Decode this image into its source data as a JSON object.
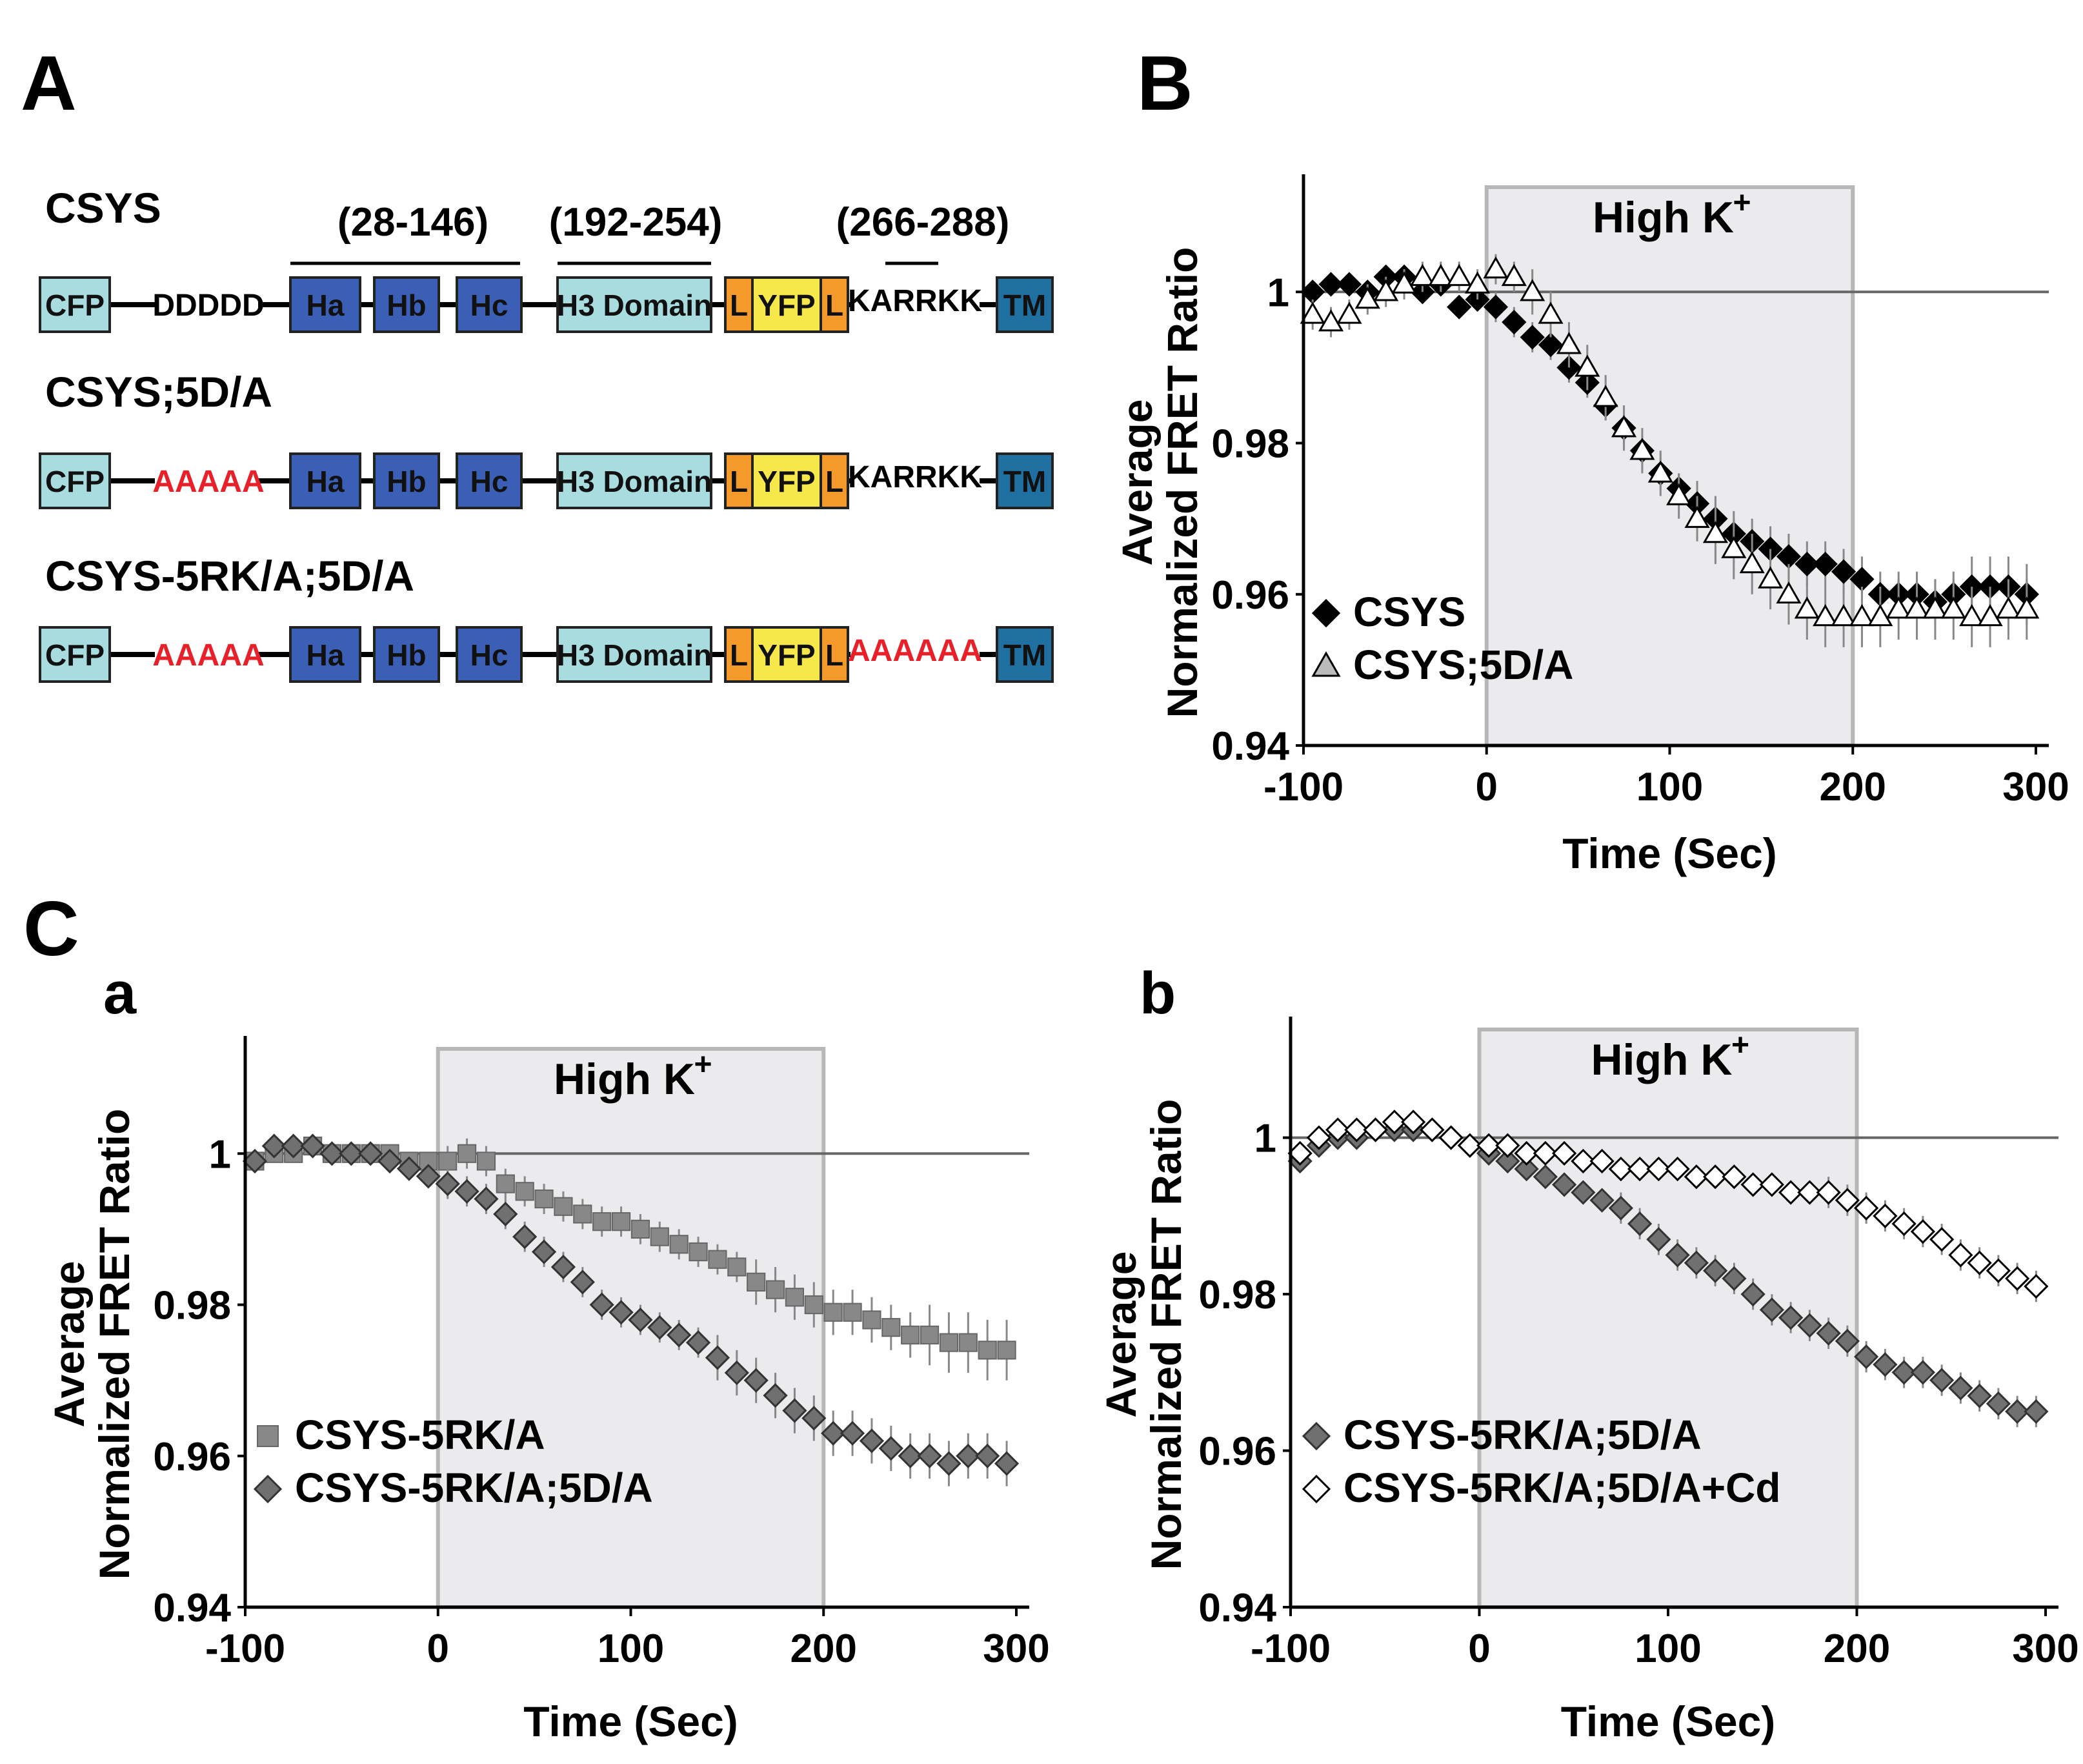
{
  "panels": {
    "A": "A",
    "B": "B",
    "C": "C",
    "Ca": "a",
    "Cb": "b"
  },
  "constructs": [
    {
      "name": "CSYS",
      "cfp": "CFP",
      "linker": "DDDDD",
      "ha": "Ha",
      "hb": "Hb",
      "hc": "Hc",
      "h3": "H3 Domain",
      "l1": "L",
      "yfp": "YFP",
      "l2": "L",
      "tail": "KARRKK",
      "tm": "TM"
    },
    {
      "name": "CSYS;5D/A",
      "cfp": "CFP",
      "linker": "AAAAA",
      "ha": "Ha",
      "hb": "Hb",
      "hc": "Hc",
      "h3": "H3 Domain",
      "l1": "L",
      "yfp": "YFP",
      "l2": "L",
      "tail": "KARRKK",
      "tm": "TM"
    },
    {
      "name": "CSYS-5RK/A;5D/A",
      "cfp": "CFP",
      "linker": "AAAAA",
      "ha": "Ha",
      "hb": "Hb",
      "hc": "Hc",
      "h3": "H3 Domain",
      "l1": "L",
      "yfp": "YFP",
      "l2": "L",
      "tail": "AAAAAA",
      "tm": "TM"
    }
  ],
  "ranges": {
    "habc": "(28-146)",
    "h3": "(192-254)",
    "tail": "(266-288)"
  },
  "colors": {
    "cfp": "#a8dcdf",
    "h": "#3a5fb5",
    "h3": "#a8dcdf",
    "l": "#f39a2b",
    "yfp": "#f6e84a",
    "tm": "#1f6fa0",
    "mutation": "#e8202a",
    "shade": "#ebebee",
    "shade_border": "#b7b7b7",
    "dark_marker": "#000000",
    "gray_marker": "#777777"
  },
  "chart_data": [
    {
      "id": "B",
      "type": "scatter",
      "title": "High K",
      "title_sup": "+",
      "xlabel": "Time (Sec)",
      "ylabel_line1": "Average",
      "ylabel_line2": "Normalized FRET Ratio",
      "xlim": [
        -100,
        300
      ],
      "ylim": [
        0.94,
        1.013
      ],
      "xticks": [
        "-100",
        "0",
        "100",
        "200",
        "300"
      ],
      "yticks": [
        "0.94",
        "0.96",
        "0.98",
        "1"
      ],
      "shaded_range": [
        0,
        200
      ],
      "reference_line": 1.0,
      "legend": [
        "CSYS",
        "CSYS;5D/A"
      ],
      "series": [
        {
          "name": "CSYS",
          "marker": "diamond",
          "fill": "#000000",
          "x": [
            -95,
            -85,
            -75,
            -65,
            -55,
            -45,
            -35,
            -25,
            -15,
            -5,
            5,
            15,
            25,
            35,
            45,
            55,
            65,
            75,
            85,
            95,
            105,
            115,
            125,
            135,
            145,
            155,
            165,
            175,
            185,
            195,
            205,
            215,
            225,
            235,
            245,
            255,
            265,
            275,
            285,
            295
          ],
          "y": [
            1.0,
            1.001,
            1.001,
            1.0,
            1.002,
            1.002,
            1.0,
            1.001,
            0.998,
            0.999,
            0.998,
            0.996,
            0.994,
            0.993,
            0.99,
            0.988,
            0.985,
            0.982,
            0.979,
            0.976,
            0.974,
            0.972,
            0.97,
            0.968,
            0.967,
            0.966,
            0.965,
            0.964,
            0.964,
            0.963,
            0.962,
            0.96,
            0.96,
            0.96,
            0.959,
            0.96,
            0.961,
            0.961,
            0.961,
            0.96
          ],
          "err": [
            0.001,
            0.001,
            0.001,
            0.001,
            0.001,
            0.001,
            0.001,
            0.001,
            0.001,
            0.001,
            0.002,
            0.002,
            0.002,
            0.002,
            0.002,
            0.002,
            0.002,
            0.002,
            0.002,
            0.002,
            0.002,
            0.003,
            0.003,
            0.003,
            0.003,
            0.003,
            0.003,
            0.003,
            0.003,
            0.003,
            0.003,
            0.003,
            0.003,
            0.003,
            0.003,
            0.003,
            0.004,
            0.004,
            0.004,
            0.004
          ]
        },
        {
          "name": "CSYS;5D/A",
          "marker": "triangle",
          "fill": "#ffffff",
          "x": [
            -95,
            -85,
            -75,
            -65,
            -55,
            -45,
            -35,
            -25,
            -15,
            -5,
            5,
            15,
            25,
            35,
            45,
            55,
            65,
            75,
            85,
            95,
            105,
            115,
            125,
            135,
            145,
            155,
            165,
            175,
            185,
            195,
            205,
            215,
            225,
            235,
            245,
            255,
            265,
            275,
            285,
            295
          ],
          "y": [
            0.997,
            0.996,
            0.997,
            0.999,
            1.0,
            1.001,
            1.002,
            1.002,
            1.002,
            1.001,
            1.003,
            1.002,
            1.0,
            0.997,
            0.993,
            0.99,
            0.986,
            0.982,
            0.979,
            0.976,
            0.973,
            0.97,
            0.968,
            0.966,
            0.964,
            0.962,
            0.96,
            0.958,
            0.957,
            0.957,
            0.957,
            0.957,
            0.958,
            0.958,
            0.958,
            0.958,
            0.957,
            0.957,
            0.958,
            0.958
          ],
          "err": [
            0.002,
            0.002,
            0.002,
            0.002,
            0.002,
            0.002,
            0.002,
            0.002,
            0.002,
            0.002,
            0.002,
            0.002,
            0.003,
            0.003,
            0.003,
            0.003,
            0.003,
            0.003,
            0.003,
            0.003,
            0.003,
            0.003,
            0.004,
            0.004,
            0.004,
            0.004,
            0.004,
            0.004,
            0.004,
            0.004,
            0.004,
            0.004,
            0.004,
            0.004,
            0.004,
            0.004,
            0.004,
            0.004,
            0.004,
            0.004
          ]
        }
      ]
    },
    {
      "id": "Ca",
      "type": "scatter",
      "title": "High K",
      "title_sup": "+",
      "xlabel": "Time (Sec)",
      "ylabel_line1": "Average",
      "ylabel_line2": "Normalized FRET Ratio",
      "xlim": [
        -100,
        300
      ],
      "ylim": [
        0.94,
        1.013
      ],
      "xticks": [
        "-100",
        "0",
        "100",
        "200",
        "300"
      ],
      "yticks": [
        "0.94",
        "0.96",
        "0.98",
        "1"
      ],
      "shaded_range": [
        0,
        200
      ],
      "reference_line": 1.0,
      "legend": [
        "CSYS-5RK/A",
        "CSYS-5RK/A;5D/A"
      ],
      "series": [
        {
          "name": "CSYS-5RK/A",
          "marker": "square",
          "fill": "#888888",
          "x": [
            -95,
            -85,
            -75,
            -65,
            -55,
            -45,
            -35,
            -25,
            -15,
            -5,
            5,
            15,
            25,
            35,
            45,
            55,
            65,
            75,
            85,
            95,
            105,
            115,
            125,
            135,
            145,
            155,
            165,
            175,
            185,
            195,
            205,
            215,
            225,
            235,
            245,
            255,
            265,
            275,
            285,
            295
          ],
          "y": [
            0.999,
            1.0,
            1.0,
            1.001,
            1.0,
            1.0,
            1.0,
            1.0,
            0.999,
            0.999,
            0.999,
            1.0,
            0.999,
            0.996,
            0.995,
            0.994,
            0.993,
            0.992,
            0.991,
            0.991,
            0.99,
            0.989,
            0.988,
            0.987,
            0.986,
            0.985,
            0.983,
            0.982,
            0.981,
            0.98,
            0.979,
            0.979,
            0.978,
            0.977,
            0.976,
            0.976,
            0.975,
            0.975,
            0.974,
            0.974
          ],
          "err": [
            0.001,
            0.001,
            0.001,
            0.001,
            0.001,
            0.001,
            0.001,
            0.001,
            0.001,
            0.001,
            0.002,
            0.002,
            0.002,
            0.002,
            0.002,
            0.002,
            0.002,
            0.002,
            0.002,
            0.002,
            0.002,
            0.002,
            0.002,
            0.002,
            0.002,
            0.002,
            0.003,
            0.003,
            0.003,
            0.003,
            0.003,
            0.003,
            0.003,
            0.003,
            0.003,
            0.004,
            0.004,
            0.004,
            0.004,
            0.004
          ]
        },
        {
          "name": "CSYS-5RK/A;5D/A",
          "marker": "diamond",
          "fill": "#707070",
          "x": [
            -95,
            -85,
            -75,
            -65,
            -55,
            -45,
            -35,
            -25,
            -15,
            -5,
            5,
            15,
            25,
            35,
            45,
            55,
            65,
            75,
            85,
            95,
            105,
            115,
            125,
            135,
            145,
            155,
            165,
            175,
            185,
            195,
            205,
            215,
            225,
            235,
            245,
            255,
            265,
            275,
            285,
            295
          ],
          "y": [
            0.999,
            1.001,
            1.001,
            1.001,
            1.0,
            1.0,
            1.0,
            0.999,
            0.998,
            0.997,
            0.996,
            0.995,
            0.994,
            0.992,
            0.989,
            0.987,
            0.985,
            0.983,
            0.98,
            0.979,
            0.978,
            0.977,
            0.976,
            0.975,
            0.973,
            0.971,
            0.97,
            0.968,
            0.966,
            0.965,
            0.963,
            0.963,
            0.962,
            0.961,
            0.96,
            0.96,
            0.959,
            0.96,
            0.96,
            0.959
          ],
          "err": [
            0.001,
            0.001,
            0.001,
            0.001,
            0.001,
            0.001,
            0.001,
            0.001,
            0.001,
            0.001,
            0.002,
            0.002,
            0.002,
            0.002,
            0.002,
            0.002,
            0.002,
            0.002,
            0.002,
            0.002,
            0.002,
            0.002,
            0.002,
            0.002,
            0.003,
            0.003,
            0.003,
            0.003,
            0.003,
            0.003,
            0.003,
            0.003,
            0.003,
            0.003,
            0.003,
            0.003,
            0.003,
            0.003,
            0.003,
            0.003
          ]
        }
      ]
    },
    {
      "id": "Cb",
      "type": "scatter",
      "title": "High K",
      "title_sup": "+",
      "xlabel": "Time (Sec)",
      "ylabel_line1": "Average",
      "ylabel_line2": "Normalized FRET Ratio",
      "xlim": [
        -100,
        300
      ],
      "ylim": [
        0.94,
        1.013
      ],
      "xticks": [
        "-100",
        "0",
        "100",
        "200",
        "300"
      ],
      "yticks": [
        "0.94",
        "0.96",
        "0.98",
        "1"
      ],
      "shaded_range": [
        0,
        200
      ],
      "reference_line": 1.0,
      "legend": [
        "CSYS-5RK/A;5D/A",
        "CSYS-5RK/A;5D/A+Cd"
      ],
      "series": [
        {
          "name": "CSYS-5RK/A;5D/A",
          "marker": "diamond",
          "fill": "#707070",
          "x": [
            -95,
            -85,
            -75,
            -65,
            -55,
            -45,
            -35,
            -25,
            -15,
            -5,
            5,
            15,
            25,
            35,
            45,
            55,
            65,
            75,
            85,
            95,
            105,
            115,
            125,
            135,
            145,
            155,
            165,
            175,
            185,
            195,
            205,
            215,
            225,
            235,
            245,
            255,
            265,
            275,
            285,
            295
          ],
          "y": [
            0.997,
            0.999,
            1.0,
            1.0,
            1.001,
            1.001,
            1.001,
            1.001,
            1.0,
            0.999,
            0.998,
            0.997,
            0.996,
            0.995,
            0.994,
            0.993,
            0.992,
            0.991,
            0.989,
            0.987,
            0.985,
            0.984,
            0.983,
            0.982,
            0.98,
            0.978,
            0.977,
            0.976,
            0.975,
            0.974,
            0.972,
            0.971,
            0.97,
            0.97,
            0.969,
            0.968,
            0.967,
            0.966,
            0.965,
            0.965
          ],
          "err": [
            0.001,
            0.001,
            0.001,
            0.001,
            0.001,
            0.001,
            0.001,
            0.001,
            0.001,
            0.001,
            0.001,
            0.001,
            0.001,
            0.001,
            0.001,
            0.001,
            0.001,
            0.002,
            0.002,
            0.002,
            0.002,
            0.002,
            0.002,
            0.002,
            0.002,
            0.002,
            0.002,
            0.002,
            0.002,
            0.002,
            0.002,
            0.002,
            0.002,
            0.002,
            0.002,
            0.002,
            0.002,
            0.002,
            0.002,
            0.002
          ]
        },
        {
          "name": "CSYS-5RK/A;5D/A+Cd",
          "marker": "diamond",
          "fill": "#ffffff",
          "x": [
            -95,
            -85,
            -75,
            -65,
            -55,
            -45,
            -35,
            -25,
            -15,
            -5,
            5,
            15,
            25,
            35,
            45,
            55,
            65,
            75,
            85,
            95,
            105,
            115,
            125,
            135,
            145,
            155,
            165,
            175,
            185,
            195,
            205,
            215,
            225,
            235,
            245,
            255,
            265,
            275,
            285,
            295
          ],
          "y": [
            0.998,
            1.0,
            1.001,
            1.001,
            1.001,
            1.002,
            1.002,
            1.001,
            1.0,
            0.999,
            0.999,
            0.999,
            0.998,
            0.998,
            0.998,
            0.997,
            0.997,
            0.996,
            0.996,
            0.996,
            0.996,
            0.995,
            0.995,
            0.995,
            0.994,
            0.994,
            0.993,
            0.993,
            0.993,
            0.992,
            0.991,
            0.99,
            0.989,
            0.988,
            0.987,
            0.985,
            0.984,
            0.983,
            0.982,
            0.981
          ],
          "err": [
            0.001,
            0.001,
            0.001,
            0.001,
            0.001,
            0.001,
            0.001,
            0.001,
            0.001,
            0.001,
            0.001,
            0.001,
            0.001,
            0.001,
            0.001,
            0.001,
            0.001,
            0.001,
            0.001,
            0.001,
            0.001,
            0.001,
            0.001,
            0.001,
            0.001,
            0.001,
            0.001,
            0.001,
            0.002,
            0.002,
            0.002,
            0.002,
            0.002,
            0.002,
            0.002,
            0.002,
            0.002,
            0.002,
            0.002,
            0.002
          ]
        }
      ]
    }
  ]
}
